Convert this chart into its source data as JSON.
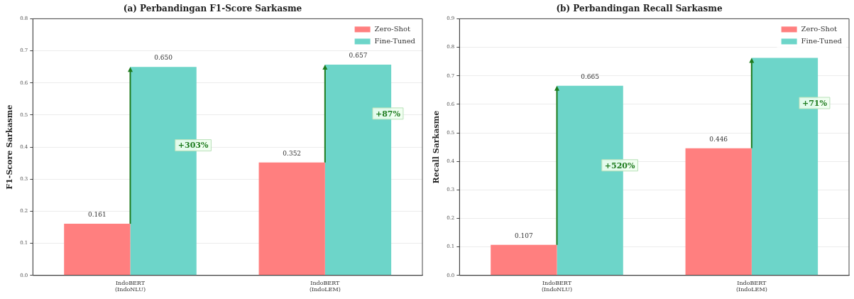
{
  "chart_data": [
    {
      "type": "bar",
      "title": "(a) Perbandingan F1-Score Sarkasme",
      "ylabel": "F1-Score Sarkasme",
      "categories": [
        "IndoBERT (IndoNLU)",
        "IndoBERT (IndoLEM)"
      ],
      "series": [
        {
          "name": "Zero-Shot",
          "color": "#ff7f7f",
          "values": [
            0.161,
            0.352
          ],
          "value_labels": [
            "0.161",
            "0.352"
          ]
        },
        {
          "name": "Fine-Tuned",
          "color": "#6dd5c9",
          "values": [
            0.65,
            0.657
          ],
          "value_labels": [
            "0.650",
            "0.657"
          ]
        }
      ],
      "ylim": [
        0,
        0.8
      ],
      "yticks": [
        {
          "value": 0,
          "label": "0.0"
        },
        {
          "value": 0.1,
          "label": "0.1"
        },
        {
          "value": 0.2,
          "label": "0.2"
        },
        {
          "value": 0.3,
          "label": "0.3"
        },
        {
          "value": 0.4,
          "label": "0.4"
        },
        {
          "value": 0.5,
          "label": "0.5"
        },
        {
          "value": 0.6,
          "label": "0.6"
        },
        {
          "value": 0.7,
          "label": "0.7"
        },
        {
          "value": 0.8,
          "label": "0.8"
        }
      ],
      "grid": "y",
      "legend": "top right",
      "annotations": [
        "+303%",
        "+87%"
      ]
    },
    {
      "type": "bar",
      "title": "(b) Perbandingan Recall Sarkasme",
      "ylabel": "Recall Sarkasme",
      "categories": [
        "IndoBERT (IndoNLU)",
        "IndoBERT (IndoLEM)"
      ],
      "series": [
        {
          "name": "Zero-Shot",
          "color": "#ff7f7f",
          "values": [
            0.107,
            0.446
          ],
          "value_labels": [
            "0.107",
            "0.446"
          ]
        },
        {
          "name": "Fine-Tuned",
          "color": "#6dd5c9",
          "values": [
            0.665,
            0.763
          ],
          "value_labels": [
            "0.665",
            null
          ]
        }
      ],
      "ylim": [
        0,
        0.9
      ],
      "yticks": [
        {
          "value": 0,
          "label": "0.0"
        },
        {
          "value": 0.1,
          "label": "0.1"
        },
        {
          "value": 0.2,
          "label": "0.2"
        },
        {
          "value": 0.3,
          "label": "0.3"
        },
        {
          "value": 0.4,
          "label": "0.4"
        },
        {
          "value": 0.5,
          "label": "0.5"
        },
        {
          "value": 0.6,
          "label": "0.6"
        },
        {
          "value": 0.7,
          "label": "0.7"
        },
        {
          "value": 0.8,
          "label": "0.8"
        },
        {
          "value": 0.9,
          "label": "0.9"
        }
      ],
      "grid": "y",
      "legend": "top right",
      "annotations": [
        "+520%",
        "+71%"
      ]
    }
  ]
}
